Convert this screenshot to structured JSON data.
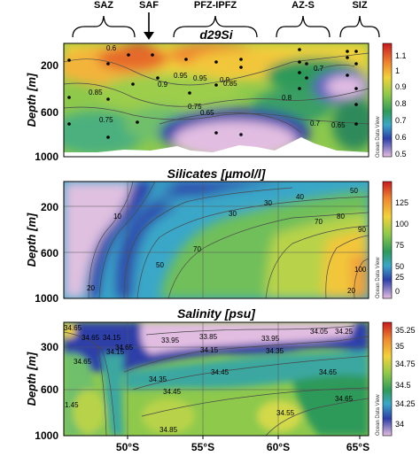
{
  "zones": {
    "labels": [
      "SAZ",
      "SAF",
      "PFZ-IPFZ",
      "AZ-S",
      "SIZ"
    ]
  },
  "watermark": "Ocean Data View",
  "chart_data": [
    {
      "type": "heatmap",
      "title": "d29Si",
      "ylabel": "Depth [m]",
      "xlim": [
        -67,
        -65
      ],
      "ylim": [
        1000,
        0
      ],
      "y_ticks": [
        "200",
        "600",
        "1000"
      ],
      "colorbar": {
        "ticks": [
          "1.1",
          "1",
          "0.9",
          "0.8",
          "0.7",
          "0.6",
          "0.5"
        ],
        "range": [
          0.5,
          1.15
        ]
      },
      "contour_labels": [
        "0.6",
        "0.9",
        "0.95",
        "0.85",
        "0.95",
        "0.9",
        "0.85",
        "0.75",
        "0.65",
        "0.7",
        "0.8",
        "0.7",
        "0.65",
        "0.75"
      ]
    },
    {
      "type": "heatmap",
      "title": "Silicates [µmol/l]",
      "ylabel": "Depth [m]",
      "ylim": [
        1000,
        0
      ],
      "y_ticks": [
        "200",
        "600",
        "1000"
      ],
      "colorbar": {
        "ticks": [
          "125",
          "100",
          "75",
          "50",
          "25",
          "0"
        ],
        "range": [
          0,
          135
        ]
      },
      "contour_labels": [
        "10",
        "20",
        "30",
        "40",
        "50",
        "30",
        "70",
        "50",
        "70",
        "80",
        "90",
        "100",
        "20"
      ]
    },
    {
      "type": "heatmap",
      "title": "Salinity [psu]",
      "ylabel": "Depth [m]",
      "ylim": [
        1000,
        0
      ],
      "y_ticks": [
        "300",
        "600",
        "1000"
      ],
      "x_ticks": [
        "50°S",
        "55°S",
        "60°S",
        "65°S"
      ],
      "colorbar": {
        "ticks": [
          "35.25",
          "35",
          "34.75",
          "34.5",
          "34.25",
          "34"
        ],
        "range": [
          33.9,
          35.3
        ]
      },
      "contour_labels": [
        "34.65",
        "34.15",
        "34.65",
        "34.15",
        "33.95",
        "33.85",
        "33.95",
        "34.15",
        "34.35",
        "34.45",
        "34.35",
        "34.65",
        "34.45",
        "34.65",
        "1.45",
        "34.65",
        "34.85",
        "34.55",
        "34.65",
        "34.05",
        "34.25"
      ]
    }
  ]
}
